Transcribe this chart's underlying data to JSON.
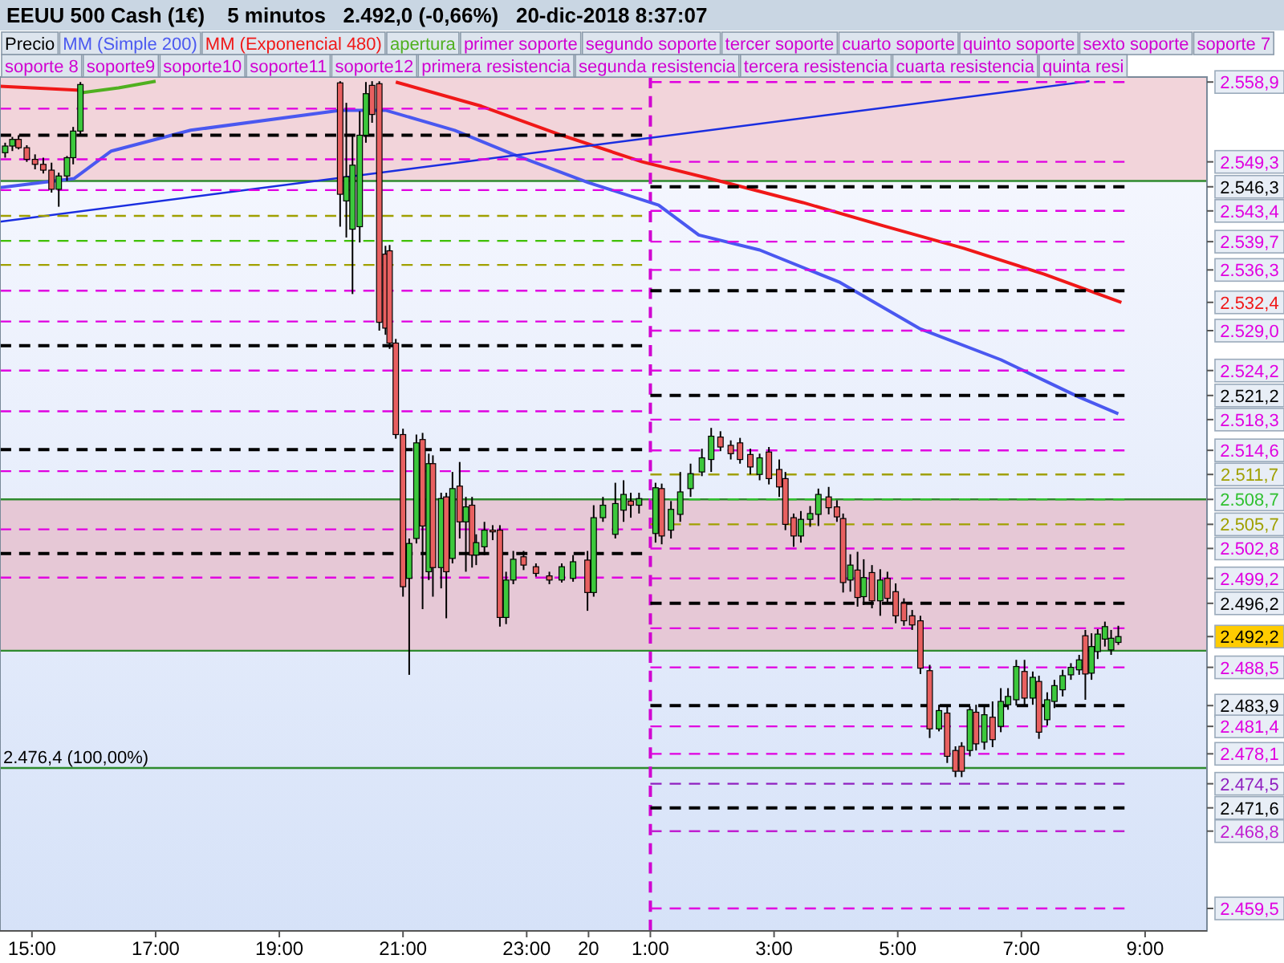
{
  "chart_data": {
    "type": "candlestick",
    "title": "EEUU 500 Cash (1€)",
    "subtitle": "5 minutos   2.492,0 (-0,66%)   20-dic-2018 8:37:07",
    "legend": "top",
    "annotations": [
      "primer soporte",
      "segundo soporte",
      "tercer soporte",
      "cuarto soporte",
      "quinto soporte",
      "sexto soporte",
      "soporte 7",
      "soporte 8",
      "soporte9",
      "soporte10",
      "soporte11",
      "soporte12",
      "primera resistencia",
      "segunda resistencia",
      "tercera resistencia",
      "cuarta resistencia",
      "quinta resi"
    ],
    "xlim": [
      "2018-12-19T14:29",
      "2018-12-20T10:00"
    ],
    "ylim": [
      2456.8,
      2559.5
    ],
    "xticks": [
      {
        "value": "2018-12-19T15:00",
        "label": "15:00"
      },
      {
        "value": "2018-12-19T17:00",
        "label": "17:00"
      },
      {
        "value": "2018-12-19T19:00",
        "label": "19:00"
      },
      {
        "value": "2018-12-19T21:00",
        "label": "21:00"
      },
      {
        "value": "2018-12-19T23:00",
        "label": "23:00"
      },
      {
        "value": "2018-12-20T00:00",
        "label": "20"
      },
      {
        "value": "2018-12-20T01:00",
        "label": "1:00"
      },
      {
        "value": "2018-12-20T03:00",
        "label": "3:00"
      },
      {
        "value": "2018-12-20T05:00",
        "label": "5:00"
      },
      {
        "value": "2018-12-20T07:00",
        "label": "7:00"
      },
      {
        "value": "2018-12-20T09:00",
        "label": "9:00"
      }
    ],
    "yticks": [
      {
        "value": 2558.9,
        "label": "2.558,9"
      },
      {
        "value": 2549.3,
        "label": "2.549,3"
      },
      {
        "value": 2546.3,
        "label": "2.546,3"
      },
      {
        "value": 2543.4,
        "label": "2.543,4"
      },
      {
        "value": 2539.7,
        "label": "2.539,7"
      },
      {
        "value": 2536.3,
        "label": "2.536,3"
      },
      {
        "value": 2532.4,
        "label": "2.532,4"
      },
      {
        "value": 2529.0,
        "label": "2.529,0"
      },
      {
        "value": 2524.2,
        "label": "2.524,2"
      },
      {
        "value": 2521.2,
        "label": "2.521,2"
      },
      {
        "value": 2518.3,
        "label": "2.518,3"
      },
      {
        "value": 2514.6,
        "label": "2.514,6"
      },
      {
        "value": 2511.7,
        "label": "2.511,7"
      },
      {
        "value": 2508.7,
        "label": "2.508,7"
      },
      {
        "value": 2505.7,
        "label": "2.505,7"
      },
      {
        "value": 2502.8,
        "label": "2.502,8"
      },
      {
        "value": 2499.2,
        "label": "2.499,2"
      },
      {
        "value": 2496.2,
        "label": "2.496,2"
      },
      {
        "value": 2492.2,
        "label": "2.492,2"
      },
      {
        "value": 2488.5,
        "label": "2.488,5"
      },
      {
        "value": 2483.9,
        "label": "2.483,9"
      },
      {
        "value": 2481.4,
        "label": "2.481,4"
      },
      {
        "value": 2478.1,
        "label": "2.478,1"
      },
      {
        "value": 2474.5,
        "label": "2.474,5"
      },
      {
        "value": 2471.6,
        "label": "2.471,6"
      },
      {
        "value": 2468.8,
        "label": "2.468,8"
      },
      {
        "value": 2459.5,
        "label": "2.459,5"
      }
    ],
    "bands": [
      {
        "axis": "y",
        "from": 2547.0,
        "to": 2559.5,
        "color": "#f2d4da"
      },
      {
        "axis": "y",
        "from": 2490.5,
        "to": 2508.7,
        "color": "#e6c8d6"
      }
    ],
    "ref_lines": [
      {
        "axis": "y",
        "value": 2547.0,
        "color": "#2e8b2e",
        "line_style": "solid"
      },
      {
        "axis": "y",
        "value": 2508.7,
        "color": "#2e8b2e",
        "line_style": "solid"
      },
      {
        "axis": "y",
        "value": 2490.5,
        "color": "#2e8b2e",
        "line_style": "solid"
      },
      {
        "axis": "y",
        "value": 2476.4,
        "label": "2.476,4 (100,00%)",
        "color": "#2e8b2e",
        "line_style": "solid"
      },
      {
        "axis": "x",
        "value": "2018-12-20T01:00",
        "color": "#d000d0",
        "line_style": "dashed"
      }
    ],
    "series": [
      {
        "name": "Precio",
        "color": "#000000",
        "x": [
          "2018-12-19T14:34",
          "2018-12-19T14:41",
          "2018-12-19T14:47",
          "2018-12-19T14:55",
          "2018-12-19T15:03",
          "2018-12-19T15:11",
          "2018-12-19T15:19",
          "2018-12-19T15:26",
          "2018-12-19T15:34",
          "2018-12-19T15:40",
          "2018-12-19T15:47",
          "2018-12-19T19:59",
          "2018-12-19T20:05",
          "2018-12-19T20:11",
          "2018-12-19T20:18",
          "2018-12-19T20:24",
          "2018-12-19T20:30",
          "2018-12-19T20:37",
          "2018-12-19T20:43",
          "2018-12-19T20:47",
          "2018-12-19T20:53",
          "2018-12-19T21:00",
          "2018-12-19T21:06",
          "2018-12-19T21:13",
          "2018-12-19T21:19",
          "2018-12-19T21:25",
          "2018-12-19T21:29",
          "2018-12-19T21:37",
          "2018-12-19T21:42",
          "2018-12-19T21:48",
          "2018-12-19T21:55",
          "2018-12-19T22:01",
          "2018-12-19T22:07",
          "2018-12-19T22:11",
          "2018-12-19T22:19",
          "2018-12-19T22:27",
          "2018-12-19T22:34",
          "2018-12-19T22:40",
          "2018-12-19T22:47",
          "2018-12-19T22:57",
          "2018-12-19T23:09",
          "2018-12-19T23:22",
          "2018-12-19T23:34",
          "2018-12-19T23:45",
          "2018-12-19T23:59",
          "2018-12-20T00:05",
          "2018-12-20T00:14",
          "2018-12-20T00:26",
          "2018-12-20T00:34",
          "2018-12-20T00:41",
          "2018-12-20T00:49",
          "2018-12-20T01:05",
          "2018-12-20T01:11",
          "2018-12-20T01:20",
          "2018-12-20T01:29",
          "2018-12-20T01:39",
          "2018-12-20T01:50",
          "2018-12-20T01:59",
          "2018-12-20T02:08",
          "2018-12-20T02:18",
          "2018-12-20T02:27",
          "2018-12-20T02:37",
          "2018-12-20T02:46",
          "2018-12-20T02:55",
          "2018-12-20T03:05",
          "2018-12-20T03:11",
          "2018-12-20T03:19",
          "2018-12-20T03:26",
          "2018-12-20T03:35",
          "2018-12-20T03:43",
          "2018-12-20T03:53",
          "2018-12-20T04:01",
          "2018-12-20T04:07",
          "2018-12-20T04:14",
          "2018-12-20T04:21",
          "2018-12-20T04:27",
          "2018-12-20T04:35",
          "2018-12-20T04:43",
          "2018-12-20T04:50",
          "2018-12-20T04:58",
          "2018-12-20T05:06",
          "2018-12-20T05:14",
          "2018-12-20T05:22",
          "2018-12-20T05:31",
          "2018-12-20T05:40",
          "2018-12-20T05:48",
          "2018-12-20T05:56",
          "2018-12-20T06:02",
          "2018-12-20T06:10",
          "2018-12-20T06:16",
          "2018-12-20T06:24",
          "2018-12-20T06:32",
          "2018-12-20T06:40",
          "2018-12-20T06:47",
          "2018-12-20T06:55",
          "2018-12-20T07:03",
          "2018-12-20T07:11",
          "2018-12-20T07:17",
          "2018-12-20T07:25",
          "2018-12-20T07:32",
          "2018-12-20T07:40",
          "2018-12-20T07:48",
          "2018-12-20T07:56",
          "2018-12-20T08:02",
          "2018-12-20T08:08",
          "2018-12-20T08:14",
          "2018-12-20T08:21",
          "2018-12-20T08:27",
          "2018-12-20T08:34"
        ],
        "ohlc": [
          [
            2550.4,
            2551.6,
            2549.8,
            2551.2
          ],
          [
            2551.2,
            2552.3,
            2550.6,
            2552.0
          ],
          [
            2552.0,
            2552.5,
            2550.8,
            2551.0
          ],
          [
            2551.0,
            2551.3,
            2549.3,
            2549.6
          ],
          [
            2549.6,
            2550.2,
            2548.4,
            2549.0
          ],
          [
            2549.0,
            2549.8,
            2547.9,
            2548.3
          ],
          [
            2548.3,
            2549.2,
            2545.6,
            2546.0
          ],
          [
            2546.0,
            2548.0,
            2543.9,
            2547.6
          ],
          [
            2547.6,
            2550.0,
            2547.0,
            2549.8
          ],
          [
            2549.8,
            2553.5,
            2549.0,
            2553.0
          ],
          [
            2553.0,
            2558.9,
            2552.5,
            2558.6
          ],
          [
            2558.8,
            2559.0,
            2541.5,
            2545.4
          ],
          [
            2544.6,
            2556.4,
            2540.2,
            2547.5
          ],
          [
            2541.2,
            2552.5,
            2533.4,
            2548.9
          ],
          [
            2541.5,
            2555.4,
            2539.6,
            2552.5
          ],
          [
            2552.5,
            2558.9,
            2551.6,
            2557.5
          ],
          [
            2558.5,
            2559.0,
            2554.0,
            2555.0
          ],
          [
            2558.7,
            2559.0,
            2529.0,
            2530.0
          ],
          [
            2538.2,
            2539.2,
            2528.5,
            2529.3
          ],
          [
            2538.6,
            2539.3,
            2526.8,
            2527.5
          ],
          [
            2527.5,
            2528.0,
            2516.0,
            2516.5
          ],
          [
            2516.5,
            2517.2,
            2497.0,
            2498.2
          ],
          [
            2499.2,
            2504.0,
            2487.6,
            2503.4
          ],
          [
            2504.0,
            2516.5,
            2503.4,
            2515.5
          ],
          [
            2515.9,
            2516.7,
            2495.5,
            2505.5
          ],
          [
            2500.0,
            2514.2,
            2499.0,
            2513.0
          ],
          [
            2513.0,
            2514.0,
            2497.0,
            2500.5
          ],
          [
            2500.5,
            2509.5,
            2498.0,
            2508.8
          ],
          [
            2509.0,
            2509.5,
            2494.4,
            2500.0
          ],
          [
            2501.6,
            2512.0,
            2501.0,
            2510.0
          ],
          [
            2510.3,
            2513.2,
            2504.0,
            2506.0
          ],
          [
            2506.0,
            2509.0,
            2500.0,
            2507.8
          ],
          [
            2508.0,
            2509.0,
            2500.5,
            2502.0
          ],
          [
            2502.0,
            2504.5,
            2500.8,
            2503.5
          ],
          [
            2503.0,
            2506.0,
            2502.0,
            2505.0
          ],
          [
            2505.0,
            2505.6,
            2503.8,
            2504.8
          ],
          [
            2505.0,
            2505.6,
            2493.4,
            2494.5
          ],
          [
            2494.5,
            2500.0,
            2493.7,
            2499.0
          ],
          [
            2499.0,
            2502.5,
            2498.5,
            2501.5
          ],
          [
            2501.8,
            2502.5,
            2500.2,
            2500.8
          ],
          [
            2500.6,
            2501.0,
            2499.4,
            2499.8
          ],
          [
            2499.5,
            2500.0,
            2498.5,
            2499.0
          ],
          [
            2499.0,
            2501.0,
            2498.7,
            2500.6
          ],
          [
            2499.2,
            2502.0,
            2498.8,
            2501.2
          ],
          [
            2501.4,
            2502.5,
            2495.3,
            2497.5
          ],
          [
            2497.5,
            2508.0,
            2497.0,
            2506.5
          ],
          [
            2506.5,
            2509.0,
            2506.0,
            2508.0
          ],
          [
            2504.5,
            2510.7,
            2504.0,
            2508.2
          ],
          [
            2507.4,
            2511.0,
            2506.0,
            2509.3
          ],
          [
            2508.5,
            2509.5,
            2506.5,
            2508.0
          ],
          [
            2508.0,
            2509.5,
            2507.0,
            2508.8
          ],
          [
            2504.6,
            2510.7,
            2503.5,
            2510.1
          ],
          [
            2510.0,
            2510.6,
            2503.3,
            2504.3
          ],
          [
            2505.0,
            2508.5,
            2504.0,
            2507.5
          ],
          [
            2506.9,
            2512.0,
            2506.0,
            2509.6
          ],
          [
            2510.0,
            2513.0,
            2509.0,
            2511.8
          ],
          [
            2512.0,
            2514.8,
            2511.5,
            2513.7
          ],
          [
            2513.5,
            2517.3,
            2512.0,
            2516.3
          ],
          [
            2516.2,
            2516.9,
            2514.5,
            2515.0
          ],
          [
            2515.2,
            2515.8,
            2513.5,
            2514.2
          ],
          [
            2515.5,
            2516.1,
            2513.0,
            2513.5
          ],
          [
            2514.1,
            2514.8,
            2511.7,
            2512.6
          ],
          [
            2511.7,
            2514.2,
            2511.0,
            2513.7
          ],
          [
            2514.4,
            2515.0,
            2510.5,
            2511.2
          ],
          [
            2512.3,
            2513.5,
            2509.0,
            2510.2
          ],
          [
            2511.2,
            2512.0,
            2505.0,
            2505.7
          ],
          [
            2506.5,
            2507.0,
            2503.0,
            2504.3
          ],
          [
            2504.3,
            2507.3,
            2503.5,
            2506.3
          ],
          [
            2506.3,
            2507.9,
            2505.4,
            2507.0
          ],
          [
            2506.9,
            2510.0,
            2505.5,
            2509.3
          ],
          [
            2509.0,
            2510.2,
            2506.9,
            2507.7
          ],
          [
            2507.8,
            2508.6,
            2506.0,
            2506.6
          ],
          [
            2506.4,
            2507.0,
            2497.5,
            2498.7
          ],
          [
            2499.0,
            2502.1,
            2497.6,
            2500.8
          ],
          [
            2500.2,
            2502.4,
            2495.8,
            2496.9
          ],
          [
            2497.0,
            2501.5,
            2496.0,
            2499.3
          ],
          [
            2499.9,
            2500.8,
            2495.6,
            2496.5
          ],
          [
            2496.5,
            2500.3,
            2494.7,
            2499.0
          ],
          [
            2499.2,
            2500.0,
            2496.2,
            2496.8
          ],
          [
            2497.6,
            2498.6,
            2493.8,
            2494.7
          ],
          [
            2496.2,
            2496.8,
            2493.5,
            2494.1
          ],
          [
            2494.7,
            2495.4,
            2493.0,
            2493.6
          ],
          [
            2494.1,
            2494.7,
            2487.7,
            2488.4
          ],
          [
            2488.1,
            2488.8,
            2480.0,
            2481.1
          ],
          [
            2481.1,
            2484.0,
            2480.8,
            2483.3
          ],
          [
            2483.0,
            2484.0,
            2477.0,
            2477.8
          ],
          [
            2478.5,
            2479.0,
            2475.3,
            2476.0
          ],
          [
            2479.0,
            2479.5,
            2475.3,
            2476.0
          ],
          [
            2478.5,
            2483.8,
            2477.8,
            2483.4
          ],
          [
            2483.1,
            2484.0,
            2478.5,
            2479.3
          ],
          [
            2479.5,
            2484.0,
            2478.6,
            2482.8
          ],
          [
            2482.5,
            2484.4,
            2478.9,
            2479.8
          ],
          [
            2481.4,
            2486.0,
            2480.7,
            2484.4
          ],
          [
            2484.0,
            2486.0,
            2483.4,
            2485.0
          ],
          [
            2484.6,
            2489.4,
            2483.9,
            2488.6
          ],
          [
            2488.0,
            2489.4,
            2484.0,
            2484.8
          ],
          [
            2484.8,
            2488.0,
            2484.0,
            2487.3
          ],
          [
            2486.8,
            2487.5,
            2479.9,
            2480.7
          ],
          [
            2482.2,
            2485.5,
            2481.5,
            2484.6
          ],
          [
            2484.4,
            2487.0,
            2483.6,
            2486.3
          ],
          [
            2485.8,
            2488.2,
            2485.0,
            2487.5
          ],
          [
            2487.6,
            2489.0,
            2487.0,
            2488.5
          ],
          [
            2488.2,
            2490.0,
            2487.6,
            2489.4
          ],
          [
            2492.3,
            2493.0,
            2484.6,
            2487.7
          ],
          [
            2487.8,
            2492.6,
            2487.0,
            2491.0
          ],
          [
            2490.4,
            2493.1,
            2489.5,
            2492.5
          ],
          [
            2491.9,
            2494.0,
            2491.0,
            2493.4
          ],
          [
            2490.6,
            2493.0,
            2490.0,
            2492.0
          ],
          [
            2491.5,
            2493.5,
            2491.2,
            2492.2
          ]
        ]
      },
      {
        "type": "line",
        "name": "MM (Simple 200)",
        "color": "#4a58f0",
        "line_style": "solid",
        "x": [
          "2018-12-19T14:29",
          "2018-12-19T15:41",
          "2018-12-19T16:17",
          "2018-12-19T17:34",
          "2018-12-19T19:59",
          "2018-12-19T20:43",
          "2018-12-19T21:50",
          "2018-12-19T22:47",
          "2018-12-20T00:00",
          "2018-12-20T01:08",
          "2018-12-20T01:47",
          "2018-12-20T02:46",
          "2018-12-20T04:04",
          "2018-12-20T05:22",
          "2018-12-20T06:40",
          "2018-12-20T07:56",
          "2018-12-20T08:34"
        ],
        "values": [
          2546.2,
          2547.3,
          2550.6,
          2553.1,
          2555.5,
          2555.5,
          2553.1,
          2550.2,
          2546.8,
          2544.1,
          2540.5,
          2538.7,
          2534.8,
          2529.2,
          2525.5,
          2521.0,
          2519.0
        ]
      },
      {
        "type": "line",
        "name": "MM (Exponencial 480)",
        "color": "#f01818",
        "line_style": "solid",
        "x": [
          "2018-12-19T14:29",
          "2018-12-19T15:47",
          "2018-12-19T17:00",
          "2018-12-19T20:53",
          "2018-12-19T22:16",
          "2018-12-19T23:34",
          "2018-12-20T00:52",
          "2018-12-20T02:10",
          "2018-12-20T03:28",
          "2018-12-20T04:46",
          "2018-12-20T06:04",
          "2018-12-20T07:22",
          "2018-12-20T08:37"
        ],
        "values": [
          2558.4,
          2557.9,
          null,
          2558.9,
          2556.0,
          2552.5,
          2549.3,
          2546.9,
          2544.4,
          2541.6,
          2538.9,
          2535.8,
          2532.4
        ]
      },
      {
        "type": "line",
        "name": "apertura",
        "color": "#50b020",
        "line_style": "solid",
        "x": [
          "2018-12-19T15:47",
          "2018-12-19T16:24",
          "2018-12-19T17:00"
        ],
        "values": [
          2557.6,
          2558.2,
          2559.0
        ]
      },
      {
        "type": "line",
        "color": "#1a2ee0",
        "line_style": "solid",
        "x": [
          "2018-12-19T14:29",
          "2018-12-20T08:06"
        ],
        "values": [
          2542.1,
          2559.0
        ]
      },
      {
        "type": "line",
        "color": "#e000e0",
        "line_style": "dashed",
        "x": [
          "2018-12-19T14:29",
          "2018-12-20T00:52"
        ],
        "values": [
          2555.7,
          2555.7
        ]
      },
      {
        "type": "line",
        "color": "#000000",
        "line_style": "dashed",
        "x": [
          "2018-12-19T14:29",
          "2018-12-20T00:52"
        ],
        "values": [
          2552.5,
          2552.5
        ]
      },
      {
        "type": "line",
        "color": "#e000e0",
        "line_style": "dashed",
        "x": [
          "2018-12-19T14:29",
          "2018-12-20T00:52"
        ],
        "values": [
          2549.6,
          2549.6
        ]
      },
      {
        "type": "line",
        "color": "#e000e0",
        "line_style": "dashed",
        "x": [
          "2018-12-19T14:29",
          "2018-12-20T00:52"
        ],
        "values": [
          2545.9,
          2545.9
        ]
      },
      {
        "type": "line",
        "color": "#a0a000",
        "line_style": "dashed",
        "x": [
          "2018-12-19T14:29",
          "2018-12-20T00:52"
        ],
        "values": [
          2542.8,
          2542.8
        ]
      },
      {
        "type": "line",
        "color": "#40c000",
        "line_style": "dashed",
        "x": [
          "2018-12-19T14:29",
          "2018-12-20T00:52"
        ],
        "values": [
          2539.8,
          2539.8
        ]
      },
      {
        "type": "line",
        "color": "#a0a000",
        "line_style": "dashed",
        "x": [
          "2018-12-19T14:29",
          "2018-12-20T00:52"
        ],
        "values": [
          2536.9,
          2536.9
        ]
      },
      {
        "type": "line",
        "color": "#e000e0",
        "line_style": "dashed",
        "x": [
          "2018-12-19T14:29",
          "2018-12-20T00:52"
        ],
        "values": [
          2533.8,
          2533.8
        ]
      },
      {
        "type": "line",
        "color": "#e000e0",
        "line_style": "dashed",
        "x": [
          "2018-12-19T14:29",
          "2018-12-20T00:52"
        ],
        "values": [
          2530.1,
          2530.1
        ]
      },
      {
        "type": "line",
        "color": "#000000",
        "line_style": "dashed",
        "x": [
          "2018-12-19T14:29",
          "2018-12-20T00:52"
        ],
        "values": [
          2527.2,
          2527.2
        ]
      },
      {
        "type": "line",
        "color": "#e000e0",
        "line_style": "dashed",
        "x": [
          "2018-12-19T14:29",
          "2018-12-20T00:52"
        ],
        "values": [
          2524.2,
          2524.2
        ]
      },
      {
        "type": "line",
        "color": "#e000e0",
        "line_style": "dashed",
        "x": [
          "2018-12-19T14:29",
          "2018-12-20T00:52"
        ],
        "values": [
          2519.3,
          2519.3
        ]
      },
      {
        "type": "line",
        "color": "#000000",
        "line_style": "dashed",
        "x": [
          "2018-12-19T14:29",
          "2018-12-20T00:52"
        ],
        "values": [
          2514.7,
          2514.7
        ]
      },
      {
        "type": "line",
        "color": "#e000e0",
        "line_style": "dashed",
        "x": [
          "2018-12-19T14:29",
          "2018-12-20T00:52"
        ],
        "values": [
          2512.1,
          2512.1
        ]
      },
      {
        "type": "line",
        "color": "#e000e0",
        "line_style": "dashed",
        "x": [
          "2018-12-19T14:29",
          "2018-12-20T00:52"
        ],
        "values": [
          2505.1,
          2505.1
        ]
      },
      {
        "type": "line",
        "color": "#000000",
        "line_style": "dashed",
        "x": [
          "2018-12-19T14:29",
          "2018-12-20T00:52"
        ],
        "values": [
          2502.2,
          2502.2
        ]
      },
      {
        "type": "line",
        "color": "#e000e0",
        "line_style": "dashed",
        "x": [
          "2018-12-19T14:29",
          "2018-12-20T00:52"
        ],
        "values": [
          2499.3,
          2499.3
        ]
      },
      {
        "type": "line",
        "color": "#e000e0",
        "line_style": "dashed",
        "x": [
          "2018-12-20T01:00",
          "2018-12-20T08:40"
        ],
        "values": [
          2558.9,
          2558.9
        ]
      },
      {
        "type": "line",
        "color": "#e000e0",
        "line_style": "dashed",
        "x": [
          "2018-12-20T01:00",
          "2018-12-20T08:40"
        ],
        "values": [
          2549.3,
          2549.3
        ]
      },
      {
        "type": "line",
        "color": "#000000",
        "line_style": "dashed",
        "x": [
          "2018-12-20T01:00",
          "2018-12-20T08:40"
        ],
        "values": [
          2546.3,
          2546.3
        ]
      },
      {
        "type": "line",
        "color": "#e000e0",
        "line_style": "dashed",
        "x": [
          "2018-12-20T01:00",
          "2018-12-20T08:40"
        ],
        "values": [
          2543.4,
          2543.4
        ]
      },
      {
        "type": "line",
        "color": "#e000e0",
        "line_style": "dashed",
        "x": [
          "2018-12-20T01:00",
          "2018-12-20T08:40"
        ],
        "values": [
          2539.7,
          2539.7
        ]
      },
      {
        "type": "line",
        "color": "#e000e0",
        "line_style": "dashed",
        "x": [
          "2018-12-20T01:00",
          "2018-12-20T08:40"
        ],
        "values": [
          2536.3,
          2536.3
        ]
      },
      {
        "type": "line",
        "color": "#000000",
        "line_style": "dashed",
        "x": [
          "2018-12-20T01:00",
          "2018-12-20T08:40"
        ],
        "values": [
          2533.8,
          2533.8
        ]
      },
      {
        "type": "line",
        "color": "#e000e0",
        "line_style": "dashed",
        "x": [
          "2018-12-20T01:00",
          "2018-12-20T08:40"
        ],
        "values": [
          2529.0,
          2529.0
        ]
      },
      {
        "type": "line",
        "color": "#e000e0",
        "line_style": "dashed",
        "x": [
          "2018-12-20T01:00",
          "2018-12-20T08:40"
        ],
        "values": [
          2524.2,
          2524.2
        ]
      },
      {
        "type": "line",
        "color": "#000000",
        "line_style": "dashed",
        "x": [
          "2018-12-20T01:00",
          "2018-12-20T08:40"
        ],
        "values": [
          2521.2,
          2521.2
        ]
      },
      {
        "type": "line",
        "color": "#e000e0",
        "line_style": "dashed",
        "x": [
          "2018-12-20T01:00",
          "2018-12-20T08:40"
        ],
        "values": [
          2518.3,
          2518.3
        ]
      },
      {
        "type": "line",
        "color": "#e000e0",
        "line_style": "dashed",
        "x": [
          "2018-12-20T01:00",
          "2018-12-20T08:40"
        ],
        "values": [
          2514.6,
          2514.6
        ]
      },
      {
        "type": "line",
        "color": "#a0a000",
        "line_style": "dashed",
        "x": [
          "2018-12-20T01:00",
          "2018-12-20T08:40"
        ],
        "values": [
          2511.7,
          2511.7
        ]
      },
      {
        "type": "line",
        "color": "#30c030",
        "line_style": "dashed",
        "x": [
          "2018-12-20T01:00",
          "2018-12-20T08:40"
        ],
        "values": [
          2508.7,
          2508.7
        ]
      },
      {
        "type": "line",
        "color": "#a0a000",
        "line_style": "dashed",
        "x": [
          "2018-12-20T01:00",
          "2018-12-20T08:40"
        ],
        "values": [
          2505.7,
          2505.7
        ]
      },
      {
        "type": "line",
        "color": "#e000e0",
        "line_style": "dashed",
        "x": [
          "2018-12-20T01:00",
          "2018-12-20T08:40"
        ],
        "values": [
          2502.8,
          2502.8
        ]
      },
      {
        "type": "line",
        "color": "#e000e0",
        "line_style": "dashed",
        "x": [
          "2018-12-20T01:00",
          "2018-12-20T08:40"
        ],
        "values": [
          2499.2,
          2499.2
        ]
      },
      {
        "type": "line",
        "color": "#000000",
        "line_style": "dashed",
        "x": [
          "2018-12-20T01:00",
          "2018-12-20T08:40"
        ],
        "values": [
          2496.2,
          2496.2
        ]
      },
      {
        "type": "line",
        "color": "#e000e0",
        "line_style": "dashed",
        "x": [
          "2018-12-20T01:00",
          "2018-12-20T08:40"
        ],
        "values": [
          2493.2,
          2493.2
        ]
      },
      {
        "type": "line",
        "color": "#e000e0",
        "line_style": "dashed",
        "x": [
          "2018-12-20T01:00",
          "2018-12-20T08:40"
        ],
        "values": [
          2488.5,
          2488.5
        ]
      },
      {
        "type": "line",
        "color": "#000000",
        "line_style": "dashed",
        "x": [
          "2018-12-20T01:00",
          "2018-12-20T08:40"
        ],
        "values": [
          2483.9,
          2483.9
        ]
      },
      {
        "type": "line",
        "color": "#e000e0",
        "line_style": "dashed",
        "x": [
          "2018-12-20T01:00",
          "2018-12-20T08:40"
        ],
        "values": [
          2481.4,
          2481.4
        ]
      },
      {
        "type": "line",
        "color": "#e000e0",
        "line_style": "dashed",
        "x": [
          "2018-12-20T01:00",
          "2018-12-20T08:40"
        ],
        "values": [
          2478.1,
          2478.1
        ]
      },
      {
        "type": "line",
        "color": "#9020c0",
        "line_style": "dashed",
        "x": [
          "2018-12-20T01:00",
          "2018-12-20T08:40"
        ],
        "values": [
          2474.5,
          2474.5
        ]
      },
      {
        "type": "line",
        "color": "#000000",
        "line_style": "dashed",
        "x": [
          "2018-12-20T01:00",
          "2018-12-20T08:40"
        ],
        "values": [
          2471.6,
          2471.6
        ]
      },
      {
        "type": "line",
        "color": "#c020d0",
        "line_style": "dashed",
        "x": [
          "2018-12-20T01:00",
          "2018-12-20T08:40"
        ],
        "values": [
          2468.8,
          2468.8
        ]
      },
      {
        "type": "line",
        "color": "#e000e0",
        "line_style": "dashed",
        "x": [
          "2018-12-20T01:00",
          "2018-12-20T08:40"
        ],
        "values": [
          2459.5,
          2459.5
        ]
      }
    ]
  }
}
